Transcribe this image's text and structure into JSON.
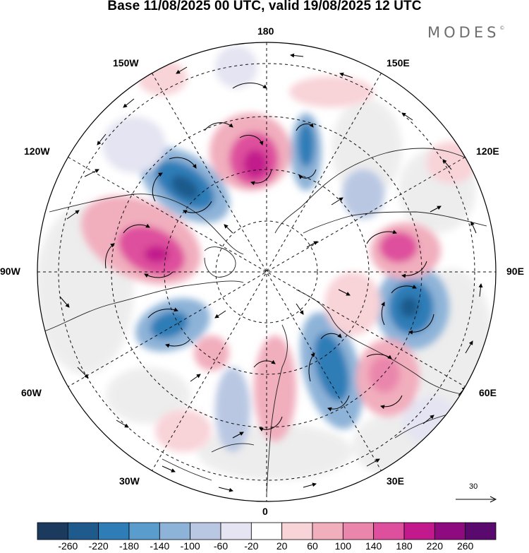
{
  "title": "Base 11/08/2025 00 UTC, valid 19/08/2025 12 UTC",
  "brand": {
    "name": "MODES",
    "mark": "©"
  },
  "longitude_labels": {
    "lon_180": "180",
    "lon_150w": "150W",
    "lon_150e": "150E",
    "lon_120w": "120W",
    "lon_120e": "120E",
    "lon_90w": "90W",
    "lon_90e": "90E",
    "lon_60w": "60W",
    "lon_60e": "60E",
    "lon_30w": "30W",
    "lon_30e": "30E",
    "lon_0": "0"
  },
  "reference_vector": {
    "label": "30"
  },
  "colorbar": {
    "ticks": [
      "-260",
      "-220",
      "-180",
      "-140",
      "-100",
      "-60",
      "-20",
      "20",
      "60",
      "100",
      "140",
      "180",
      "220",
      "260"
    ],
    "colors": [
      "#1c3a5e",
      "#1f5a8c",
      "#2f7db7",
      "#5a9ccb",
      "#8eb3d8",
      "#b9c7e3",
      "#e4e4f2",
      "#ffffff",
      "#f8d3d8",
      "#f1aebd",
      "#ea86ac",
      "#de4f9d",
      "#c21a8c",
      "#8e0a7e",
      "#5a0a6e"
    ]
  },
  "anomaly_features": {
    "colors": {
      "neg_strong": "#2f7db7",
      "neg_mid": "#8eb3d8",
      "neg_weak": "#e4e4f2",
      "pos_weak": "#f8d3d8",
      "pos_mid": "#ea86ac",
      "pos_strong": "#c21a8c",
      "neutral_grey": "#ececec"
    }
  }
}
